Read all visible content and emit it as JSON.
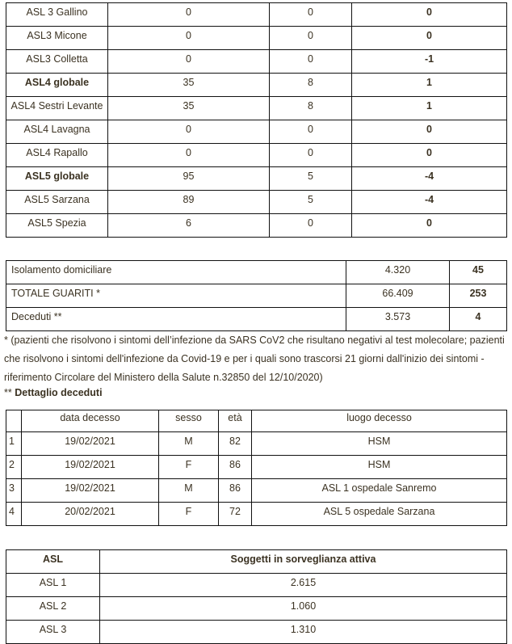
{
  "table_asl": {
    "rows": [
      {
        "name": "ASL 3 Gallino",
        "a": "0",
        "b": "0",
        "c": "0",
        "bold": false
      },
      {
        "name": "ASL3 Micone",
        "a": "0",
        "b": "0",
        "c": "0",
        "bold": false
      },
      {
        "name": "ASL3 Colletta",
        "a": "0",
        "b": "0",
        "c": "-1",
        "bold": false
      },
      {
        "name": "ASL4 globale",
        "a": "35",
        "b": "8",
        "c": "1",
        "bold": true
      },
      {
        "name": "ASL4 Sestri Levante",
        "a": "35",
        "b": "8",
        "c": "1",
        "bold": false
      },
      {
        "name": "ASL4 Lavagna",
        "a": "0",
        "b": "0",
        "c": "0",
        "bold": false
      },
      {
        "name": "ASL4 Rapallo",
        "a": "0",
        "b": "0",
        "c": "0",
        "bold": false
      },
      {
        "name": "ASL5 globale",
        "a": "95",
        "b": "5",
        "c": "-4",
        "bold": true
      },
      {
        "name": "ASL5 Sarzana",
        "a": "89",
        "b": "5",
        "c": "-4",
        "bold": false
      },
      {
        "name": "ASL5 Spezia",
        "a": "6",
        "b": "0",
        "c": "0",
        "bold": false
      }
    ]
  },
  "table_totals": {
    "rows": [
      {
        "label": "Isolamento domiciliare",
        "total": "4.320",
        "delta": "45"
      },
      {
        "label": "TOTALE GUARITI *",
        "total": "66.409",
        "delta": "253"
      },
      {
        "label": "Deceduti **",
        "total": "3.573",
        "delta": "4"
      }
    ]
  },
  "footnote": "* (pazienti che risolvono i sintomi dell’infezione da SARS CoV2 che risultano negativi al test molecolare; pazienti che risolvono i sintomi dell'infezione da Covid-19 e per i quali sono trascorsi 21 giorni dall'inizio dei sintomi - riferimento Circolare del Ministero della Salute n.32850 del 12/10/2020)",
  "deaths_heading": {
    "prefix": "**",
    "title": "Dettaglio deceduti"
  },
  "table_deaths": {
    "headers": [
      "",
      "data decesso",
      "sesso",
      "età",
      "luogo decesso"
    ],
    "rows": [
      [
        "1",
        "19/02/2021",
        "M",
        "82",
        "HSM"
      ],
      [
        "2",
        "19/02/2021",
        "F",
        "86",
        "HSM"
      ],
      [
        "3",
        "19/02/2021",
        "M",
        "86",
        "ASL 1 ospedale Sanremo"
      ],
      [
        "4",
        "20/02/2021",
        "F",
        "72",
        "ASL 5 ospedale Sarzana"
      ]
    ]
  },
  "table_surveillance": {
    "headers": [
      "ASL",
      "Soggetti in sorveglianza attiva"
    ],
    "rows": [
      [
        "ASL 1",
        "2.615"
      ],
      [
        "ASL 2",
        "1.060"
      ],
      [
        "ASL 3",
        "1.310"
      ]
    ]
  }
}
